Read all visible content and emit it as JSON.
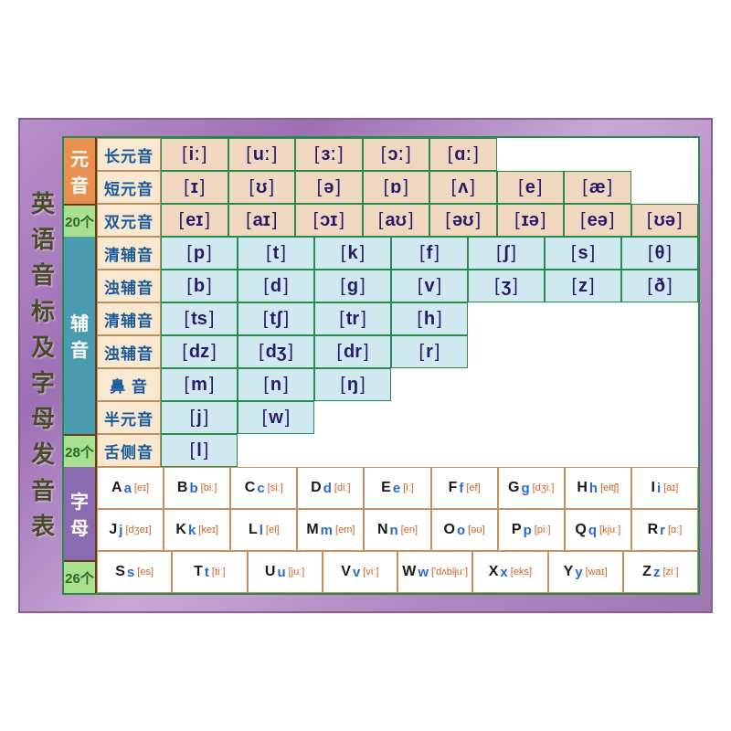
{
  "title_chars": [
    "英",
    "语",
    "音",
    "标",
    "及",
    "字",
    "母",
    "发",
    "音",
    "表"
  ],
  "colors": {
    "poster_bg_start": "#b88fc9",
    "poster_bg_end": "#a078b0",
    "border_green": "#2a8a4a",
    "vowel_cat": "#e89050",
    "cons_cat": "#4a9ab0",
    "letter_cat": "#8a6ab0",
    "count_bg": "#a8e090",
    "label_bg": "#f8e8d0",
    "label_text": "#1a5a9a",
    "vowel_cell": "#f0d8c0",
    "cons_cell": "#d0e8f0",
    "symbol": "#2a1a6a",
    "letter_upper": "#1a1a1a",
    "letter_lower": "#2a6ad0",
    "letter_pron": "#d06020"
  },
  "vowel": {
    "cat": "元音",
    "count": "20个",
    "rows": [
      {
        "label": "长元音",
        "bg": "vowel",
        "cells": [
          "iː",
          "uː",
          "ɜː",
          "ɔː",
          "ɑː"
        ]
      },
      {
        "label": "短元音",
        "bg": "vowel",
        "cells": [
          "ɪ",
          "ʊ",
          "ə",
          "ɒ",
          "ʌ",
          "e",
          "æ"
        ]
      },
      {
        "label": "双元音",
        "bg": "vowel",
        "cells": [
          "eɪ",
          "aɪ",
          "ɔɪ",
          "aʊ",
          "əʊ",
          "ɪə",
          "eə",
          "ʊə"
        ]
      }
    ]
  },
  "consonant": {
    "cat": "辅音",
    "count": "28个",
    "rows": [
      {
        "label": "清辅音",
        "bg": "cons",
        "cells": [
          "p",
          "t",
          "k",
          "f",
          "ʃ",
          "s",
          "θ"
        ]
      },
      {
        "label": "浊辅音",
        "bg": "cons",
        "cells": [
          "b",
          "d",
          "g",
          "v",
          "ʒ",
          "z",
          "ð"
        ]
      },
      {
        "label": "清辅音",
        "bg": "cons",
        "cells": [
          "ts",
          "tʃ",
          "tr",
          "h"
        ]
      },
      {
        "label": "浊辅音",
        "bg": "cons",
        "cells": [
          "dz",
          "dʒ",
          "dr",
          "r"
        ]
      },
      {
        "label": "鼻 音",
        "bg": "cons",
        "cells": [
          "m",
          "n",
          "ŋ"
        ]
      },
      {
        "label": "半元音",
        "bg": "cons",
        "cells": [
          "j",
          "w"
        ]
      },
      {
        "label": "舌侧音",
        "bg": "cons",
        "cells": [
          "l"
        ]
      }
    ]
  },
  "letters": {
    "cat": "字母",
    "count": "26个",
    "rows": [
      [
        {
          "u": "A",
          "l": "a",
          "p": "[eɪ]"
        },
        {
          "u": "B",
          "l": "b",
          "p": "[biː]"
        },
        {
          "u": "C",
          "l": "c",
          "p": "[siː]"
        },
        {
          "u": "D",
          "l": "d",
          "p": "[diː]"
        },
        {
          "u": "E",
          "l": "e",
          "p": "[iː]"
        },
        {
          "u": "F",
          "l": "f",
          "p": "[ef]"
        },
        {
          "u": "G",
          "l": "g",
          "p": "[dʒiː]"
        },
        {
          "u": "H",
          "l": "h",
          "p": "[eitʃ]"
        },
        {
          "u": "I",
          "l": "i",
          "p": "[aɪ]"
        }
      ],
      [
        {
          "u": "J",
          "l": "j",
          "p": "[dʒeɪ]"
        },
        {
          "u": "K",
          "l": "k",
          "p": "[keɪ]"
        },
        {
          "u": "L",
          "l": "l",
          "p": "[el]"
        },
        {
          "u": "M",
          "l": "m",
          "p": "[em]"
        },
        {
          "u": "N",
          "l": "n",
          "p": "[en]"
        },
        {
          "u": "O",
          "l": "o",
          "p": "[əʊ]"
        },
        {
          "u": "P",
          "l": "p",
          "p": "[piː]"
        },
        {
          "u": "Q",
          "l": "q",
          "p": "[kjuː]"
        },
        {
          "u": "R",
          "l": "r",
          "p": "[ɑː]"
        }
      ],
      [
        {
          "u": "S",
          "l": "s",
          "p": "[es]"
        },
        {
          "u": "T",
          "l": "t",
          "p": "[tiː]"
        },
        {
          "u": "U",
          "l": "u",
          "p": "[juː]"
        },
        {
          "u": "V",
          "l": "v",
          "p": "[viː]"
        },
        {
          "u": "W",
          "l": "w",
          "p": "['dʌbljuː]"
        },
        {
          "u": "X",
          "l": "x",
          "p": "[eks]"
        },
        {
          "u": "Y",
          "l": "y",
          "p": "[waɪ]"
        },
        {
          "u": "Z",
          "l": "z",
          "p": "[ziː]"
        }
      ]
    ]
  }
}
